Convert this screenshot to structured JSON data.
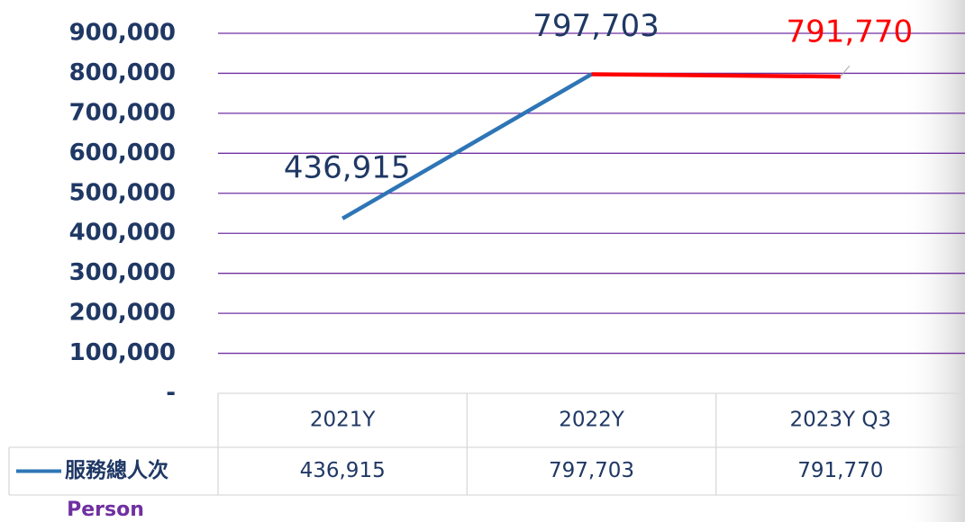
{
  "chart_data": {
    "type": "line",
    "categories": [
      "2021Y",
      "2022Y",
      "2023Y Q3"
    ],
    "series": [
      {
        "name": "服務總人次",
        "color": "#2e75b6",
        "values": [
          436915,
          797703,
          791770
        ],
        "value_labels": [
          "436,915",
          "797,703",
          "791,770"
        ],
        "label_colors": [
          "#1f3864",
          "#1f3864",
          "#ff0000"
        ],
        "segment_colors": [
          "#2e75b6",
          "#ff0000"
        ]
      }
    ],
    "ylim": [
      0,
      900000
    ],
    "yticks": [
      {
        "value": 0,
        "label": "-"
      },
      {
        "value": 100000,
        "label": "100,000"
      },
      {
        "value": 200000,
        "label": "200,000"
      },
      {
        "value": 300000,
        "label": "300,000"
      },
      {
        "value": 400000,
        "label": "400,000"
      },
      {
        "value": 500000,
        "label": "500,000"
      },
      {
        "value": 600000,
        "label": "600,000"
      },
      {
        "value": 700000,
        "label": "700,000"
      },
      {
        "value": 800000,
        "label": "800,000"
      },
      {
        "value": 900000,
        "label": "900,000"
      }
    ],
    "grid": true,
    "unit_label": "Person"
  }
}
